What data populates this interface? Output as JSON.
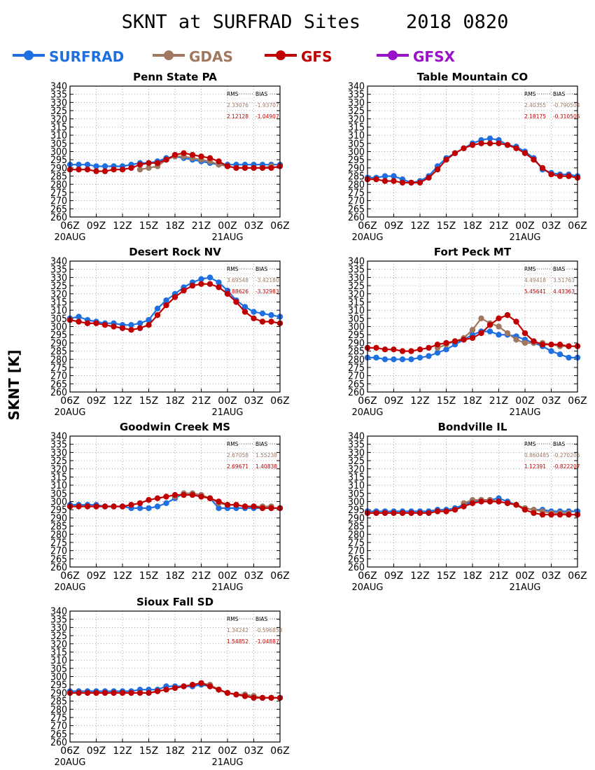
{
  "title": "SKNT at SURFRAD Sites    2018 0820",
  "ylabel": "SKNT [K]",
  "legend": [
    {
      "name": "SURFRAD",
      "color": "#1e6fe0"
    },
    {
      "name": "GDAS",
      "color": "#a07860"
    },
    {
      "name": "GFS",
      "color": "#c00000"
    },
    {
      "name": "GFSX",
      "color": "#9a10c8"
    }
  ],
  "x_ticks": [
    "06Z",
    "09Z",
    "12Z",
    "15Z",
    "18Z",
    "21Z",
    "00Z",
    "03Z",
    "06Z"
  ],
  "x_date_labels": [
    {
      "tick": 0,
      "text": "20AUG"
    },
    {
      "tick": 6,
      "text": "21AUG"
    }
  ],
  "y_ticks": [
    260,
    265,
    270,
    275,
    280,
    285,
    290,
    295,
    300,
    305,
    310,
    315,
    320,
    325,
    330,
    335,
    340
  ],
  "stats_header": {
    "rms": "RMS",
    "bias": "BIAS"
  },
  "chart_data": [
    {
      "type": "line",
      "title": "Penn State PA",
      "ylim": [
        260,
        340
      ],
      "x_hours": [
        0,
        1,
        2,
        3,
        4,
        5,
        6,
        7,
        8,
        9,
        10,
        11,
        12,
        13,
        14,
        15,
        16,
        17,
        18,
        19,
        20,
        21,
        22,
        23,
        24
      ],
      "series": [
        {
          "name": "SURFRAD",
          "values": [
            292,
            292,
            292,
            291,
            291,
            291,
            291,
            292,
            293,
            293,
            294,
            296,
            297,
            296,
            295,
            294,
            293,
            292,
            292,
            292,
            292,
            292,
            292,
            292,
            292
          ]
        },
        {
          "name": "GDAS",
          "values": [
            null,
            null,
            null,
            null,
            null,
            null,
            null,
            null,
            289,
            290,
            291,
            295,
            297,
            297,
            296,
            295,
            294,
            292,
            291,
            290,
            290,
            290,
            290,
            291,
            null
          ]
        },
        {
          "name": "GFS",
          "values": [
            289,
            289,
            289,
            288,
            288,
            289,
            289,
            290,
            292,
            293,
            293,
            295,
            298,
            299,
            298,
            297,
            296,
            294,
            291,
            290,
            290,
            290,
            290,
            290,
            291
          ]
        }
      ],
      "stats": [
        {
          "model": "GDAS",
          "rms": "2.33076",
          "bias": "-1.93707"
        },
        {
          "model": "GFS",
          "rms": "2.12128",
          "bias": "-1.04907"
        }
      ]
    },
    {
      "type": "line",
      "title": "Table Mountain CO",
      "ylim": [
        260,
        340
      ],
      "x_hours": [
        0,
        1,
        2,
        3,
        4,
        5,
        6,
        7,
        8,
        9,
        10,
        11,
        12,
        13,
        14,
        15,
        16,
        17,
        18,
        19,
        20,
        21,
        22,
        23,
        24
      ],
      "series": [
        {
          "name": "SURFRAD",
          "values": [
            284,
            284,
            285,
            285,
            283,
            281,
            282,
            285,
            291,
            296,
            299,
            302,
            305,
            307,
            308,
            307,
            304,
            303,
            300,
            296,
            289,
            287,
            286,
            286,
            285
          ]
        },
        {
          "name": "GDAS",
          "values": [
            null,
            null,
            null,
            null,
            null,
            null,
            null,
            null,
            null,
            null,
            null,
            null,
            null,
            null,
            null,
            null,
            null,
            null,
            null,
            null,
            null,
            null,
            null,
            null,
            null
          ]
        },
        {
          "name": "GFS",
          "values": [
            283,
            283,
            282,
            282,
            281,
            281,
            281,
            284,
            289,
            295,
            299,
            302,
            304,
            305,
            305,
            305,
            304,
            302,
            299,
            295,
            290,
            286,
            285,
            285,
            284
          ]
        }
      ],
      "stats": [
        {
          "model": "GDAS",
          "rms": "2.40355",
          "bias": "-0.790504"
        },
        {
          "model": "GFS",
          "rms": "2.18175",
          "bias": "-0.310505"
        }
      ]
    },
    {
      "type": "line",
      "title": "Desert Rock NV",
      "ylim": [
        260,
        340
      ],
      "x_hours": [
        0,
        1,
        2,
        3,
        4,
        5,
        6,
        7,
        8,
        9,
        10,
        11,
        12,
        13,
        14,
        15,
        16,
        17,
        18,
        19,
        20,
        21,
        22,
        23,
        24
      ],
      "series": [
        {
          "name": "SURFRAD",
          "values": [
            305,
            306,
            304,
            303,
            302,
            302,
            301,
            301,
            302,
            304,
            311,
            316,
            320,
            324,
            327,
            329,
            330,
            327,
            322,
            316,
            312,
            309,
            308,
            307,
            306
          ]
        },
        {
          "name": "GDAS",
          "values": [
            null,
            null,
            null,
            null,
            null,
            null,
            null,
            null,
            null,
            null,
            null,
            null,
            null,
            null,
            null,
            null,
            null,
            null,
            null,
            null,
            null,
            null,
            null,
            null,
            null
          ]
        },
        {
          "name": "GFS",
          "values": [
            304,
            303,
            302,
            302,
            301,
            300,
            299,
            298,
            299,
            301,
            307,
            313,
            318,
            322,
            325,
            326,
            326,
            324,
            320,
            315,
            309,
            305,
            303,
            303,
            302
          ]
        }
      ],
      "stats": [
        {
          "model": "GDAS",
          "rms": "3.69548",
          "bias": "-3.42180"
        },
        {
          "model": "GFS",
          "rms": "3.88626",
          "bias": "-3.32983"
        }
      ]
    },
    {
      "type": "line",
      "title": "Fort Peck MT",
      "ylim": [
        260,
        340
      ],
      "x_hours": [
        0,
        1,
        2,
        3,
        4,
        5,
        6,
        7,
        8,
        9,
        10,
        11,
        12,
        13,
        14,
        15,
        16,
        17,
        18,
        19,
        20,
        21,
        22,
        23,
        24
      ],
      "series": [
        {
          "name": "SURFRAD",
          "values": [
            281,
            281,
            280,
            280,
            280,
            280,
            281,
            282,
            284,
            286,
            289,
            292,
            295,
            297,
            297,
            295,
            295,
            294,
            292,
            290,
            288,
            285,
            283,
            281,
            281
          ]
        },
        {
          "name": "GDAS",
          "values": [
            null,
            null,
            null,
            null,
            null,
            null,
            null,
            null,
            287,
            289,
            291,
            293,
            298,
            305,
            302,
            300,
            296,
            292,
            290,
            290,
            290,
            289,
            288,
            288,
            null
          ]
        },
        {
          "name": "GFS",
          "values": [
            287,
            287,
            286,
            286,
            285,
            285,
            286,
            287,
            289,
            290,
            291,
            292,
            293,
            296,
            301,
            305,
            307,
            303,
            296,
            291,
            289,
            289,
            289,
            288,
            288
          ]
        }
      ],
      "stats": [
        {
          "model": "GDAS",
          "rms": "4.49418",
          "bias": "3.51763"
        },
        {
          "model": "GFS",
          "rms": "5.45641",
          "bias": "4.43363"
        }
      ]
    },
    {
      "type": "line",
      "title": "Goodwin Creek MS",
      "ylim": [
        260,
        340
      ],
      "x_hours": [
        0,
        1,
        2,
        3,
        4,
        5,
        6,
        7,
        8,
        9,
        10,
        11,
        12,
        13,
        14,
        15,
        16,
        17,
        18,
        19,
        20,
        21,
        22,
        23,
        24
      ],
      "series": [
        {
          "name": "SURFRAD",
          "values": [
            298,
            298,
            298,
            298,
            297,
            297,
            297,
            296,
            296,
            296,
            297,
            299,
            302,
            305,
            305,
            304,
            302,
            296,
            296,
            296,
            296,
            296,
            296,
            296,
            296
          ]
        },
        {
          "name": "GDAS",
          "values": [
            null,
            null,
            null,
            null,
            null,
            null,
            null,
            null,
            null,
            null,
            null,
            null,
            303,
            305,
            305,
            304,
            302,
            299,
            298,
            298,
            297,
            297,
            297,
            297,
            null
          ]
        },
        {
          "name": "GFS",
          "values": [
            297,
            297,
            297,
            297,
            297,
            297,
            297,
            298,
            299,
            301,
            302,
            303,
            304,
            304,
            304,
            303,
            302,
            300,
            298,
            298,
            297,
            297,
            296,
            296,
            296
          ]
        }
      ],
      "stats": [
        {
          "model": "GDAS",
          "rms": "2.67058",
          "bias": "1.55238"
        },
        {
          "model": "GFS",
          "rms": "2.69671",
          "bias": "1.40838"
        }
      ]
    },
    {
      "type": "line",
      "title": "Bondville IL",
      "ylim": [
        260,
        340
      ],
      "x_hours": [
        0,
        1,
        2,
        3,
        4,
        5,
        6,
        7,
        8,
        9,
        10,
        11,
        12,
        13,
        14,
        15,
        16,
        17,
        18,
        19,
        20,
        21,
        22,
        23,
        24
      ],
      "series": [
        {
          "name": "SURFRAD",
          "values": [
            294,
            294,
            294,
            294,
            294,
            294,
            294,
            294,
            295,
            295,
            296,
            298,
            300,
            301,
            301,
            302,
            300,
            298,
            296,
            295,
            295,
            294,
            294,
            294,
            294
          ]
        },
        {
          "name": "GDAS",
          "values": [
            null,
            null,
            null,
            null,
            null,
            null,
            null,
            null,
            null,
            null,
            null,
            299,
            301,
            301,
            301,
            300,
            299,
            298,
            296,
            295,
            294,
            293,
            293,
            293,
            null
          ]
        },
        {
          "name": "GFS",
          "values": [
            293,
            293,
            293,
            293,
            293,
            293,
            293,
            293,
            294,
            294,
            295,
            297,
            299,
            300,
            300,
            300,
            299,
            298,
            295,
            293,
            292,
            292,
            292,
            292,
            292
          ]
        }
      ],
      "stats": [
        {
          "model": "GDAS",
          "rms": "0.860485",
          "bias": "-0.270205"
        },
        {
          "model": "GFS",
          "rms": "1.12391",
          "bias": "-0.822207"
        }
      ]
    },
    {
      "type": "line",
      "title": "Sioux Fall SD",
      "ylim": [
        260,
        340
      ],
      "x_hours": [
        0,
        1,
        2,
        3,
        4,
        5,
        6,
        7,
        8,
        9,
        10,
        11,
        12,
        13,
        14,
        15,
        16,
        17,
        18,
        19,
        20,
        21,
        22,
        23,
        24
      ],
      "series": [
        {
          "name": "SURFRAD",
          "values": [
            291,
            291,
            291,
            291,
            291,
            291,
            291,
            291,
            292,
            292,
            292,
            294,
            294,
            294,
            294,
            295,
            294,
            292,
            290,
            289,
            289,
            288,
            287,
            287,
            287
          ]
        },
        {
          "name": "GDAS",
          "values": [
            null,
            null,
            null,
            null,
            null,
            null,
            null,
            null,
            null,
            null,
            null,
            null,
            null,
            null,
            null,
            296,
            295,
            292,
            290,
            289,
            289,
            288,
            287,
            287,
            null
          ]
        },
        {
          "name": "GFS",
          "values": [
            290,
            290,
            290,
            290,
            290,
            290,
            290,
            290,
            290,
            290,
            291,
            292,
            293,
            294,
            295,
            296,
            294,
            292,
            290,
            289,
            288,
            287,
            287,
            287,
            287
          ]
        }
      ],
      "stats": [
        {
          "model": "GDAS",
          "rms": "1.34242",
          "bias": "-0.596858"
        },
        {
          "model": "GFS",
          "rms": "1.54852",
          "bias": "-1.04887"
        }
      ]
    }
  ]
}
